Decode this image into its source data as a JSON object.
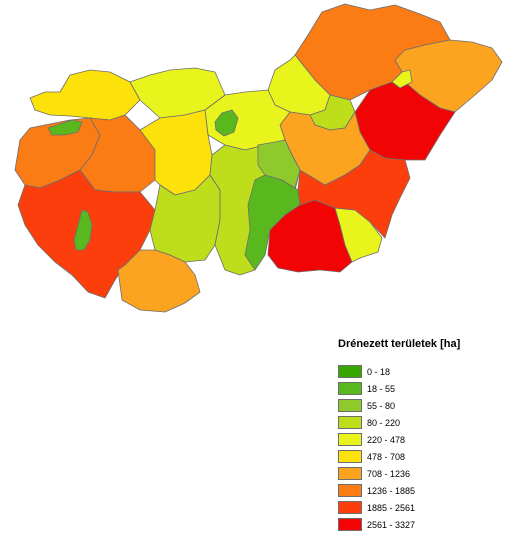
{
  "legend": {
    "title": "Drénezett területek [ha]",
    "classes": [
      {
        "label": "0 - 18",
        "color": "#37a700"
      },
      {
        "label": "18 - 55",
        "color": "#5ab81f"
      },
      {
        "label": "55 - 80",
        "color": "#8fca2d"
      },
      {
        "label": "80 - 220",
        "color": "#bedd1a"
      },
      {
        "label": "220 - 478",
        "color": "#e8f41c"
      },
      {
        "label": "478 - 708",
        "color": "#fce10a"
      },
      {
        "label": "708 - 1236",
        "color": "#fca31f"
      },
      {
        "label": "1236 - 1885",
        "color": "#fb7b14"
      },
      {
        "label": "1885 - 2561",
        "color": "#fb3e0c"
      },
      {
        "label": "2561 - 3327",
        "color": "#f20405"
      }
    ]
  },
  "regions": [
    {
      "name": "north-east-upper",
      "class": "1236 - 1885"
    },
    {
      "name": "north-east-corner",
      "class": "708 - 1236"
    },
    {
      "name": "north-east-upper-small",
      "class": "220 - 478"
    },
    {
      "name": "east-center",
      "class": "2561 - 3327"
    },
    {
      "name": "north-central",
      "class": "220 - 478"
    },
    {
      "name": "north-central-small",
      "class": "80 - 220"
    },
    {
      "name": "north-west",
      "class": "478 - 708"
    },
    {
      "name": "north-west-small",
      "class": "220 - 478"
    },
    {
      "name": "west",
      "class": "1236 - 1885"
    },
    {
      "name": "west-inner",
      "class": "1236 - 1885"
    },
    {
      "name": "budapest-area",
      "class": "220 - 478"
    },
    {
      "name": "budapest-core",
      "class": "18 - 55"
    },
    {
      "name": "center-west",
      "class": "478 - 708"
    },
    {
      "name": "center-east",
      "class": "708 - 1236"
    },
    {
      "name": "south-west",
      "class": "1885 - 2561"
    },
    {
      "name": "south-west-lake",
      "class": "18 - 55"
    },
    {
      "name": "south-central-west",
      "class": "80 - 220"
    },
    {
      "name": "south-central",
      "class": "80 - 220"
    },
    {
      "name": "south-central-green",
      "class": "18 - 55"
    },
    {
      "name": "south-central-small",
      "class": "55 - 80"
    },
    {
      "name": "south-center",
      "class": "708 - 1236"
    },
    {
      "name": "south-east",
      "class": "2561 - 3327"
    },
    {
      "name": "south-east-small",
      "class": "220 - 478"
    },
    {
      "name": "east-lower",
      "class": "1885 - 2561"
    },
    {
      "name": "north-green-strip",
      "class": "18 - 55"
    }
  ]
}
